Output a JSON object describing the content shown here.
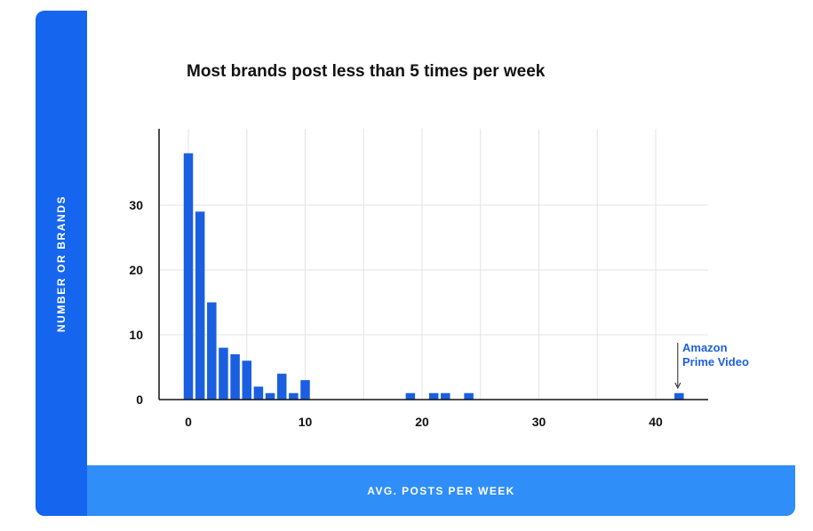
{
  "chart_data": {
    "type": "bar",
    "title": "Most brands post less than 5 times per week",
    "xlabel": "AVG. POSTS PER WEEK",
    "ylabel": "NUMBER OR BRANDS",
    "xlim": [
      -2,
      45
    ],
    "ylim": [
      0,
      41
    ],
    "xticks": [
      0,
      10,
      20,
      30,
      40
    ],
    "yticks": [
      0,
      10,
      20,
      30
    ],
    "grid": true,
    "legend": "none",
    "bars": [
      {
        "x": 0,
        "y": 38
      },
      {
        "x": 1,
        "y": 29
      },
      {
        "x": 2,
        "y": 15
      },
      {
        "x": 3,
        "y": 8
      },
      {
        "x": 4,
        "y": 7
      },
      {
        "x": 5,
        "y": 6
      },
      {
        "x": 6,
        "y": 2
      },
      {
        "x": 7,
        "y": 1
      },
      {
        "x": 8,
        "y": 4
      },
      {
        "x": 9,
        "y": 1
      },
      {
        "x": 10,
        "y": 3
      },
      {
        "x": 19,
        "y": 1
      },
      {
        "x": 21,
        "y": 1
      },
      {
        "x": 22,
        "y": 1
      },
      {
        "x": 24,
        "y": 1
      },
      {
        "x": 42,
        "y": 1
      }
    ],
    "annotation": {
      "text_line1": "Amazon",
      "text_line2": "Prime Video",
      "x": 42
    }
  },
  "colors": {
    "bar": "#1a5fe0",
    "side_band": "#1565ee",
    "bottom_band": "#2f8ef7",
    "grid": "#e3e3e3",
    "annotation": "#1d5fe0"
  }
}
